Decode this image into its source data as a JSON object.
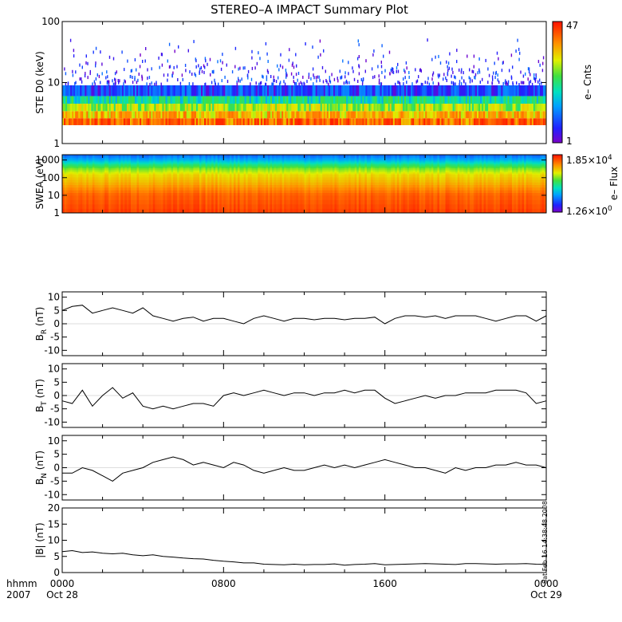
{
  "title": "STEREO–A IMPACT Summary Plot",
  "colorbars": {
    "ste": {
      "max_label": "47",
      "min_label": "1",
      "label": "e– Cnts"
    },
    "swea": {
      "max_mant": "1.85×10",
      "max_exp": "4",
      "min_mant": "1.26×10",
      "min_exp": "0",
      "label": "e– Flux"
    }
  },
  "time_axis": {
    "corner_top": "hhmm",
    "corner_bottom": "2007",
    "ticks": [
      {
        "time": "0000",
        "date": "Oct 28",
        "hour": 0
      },
      {
        "time": "0800",
        "date": "",
        "hour": 8
      },
      {
        "time": "1600",
        "date": "",
        "hour": 16
      },
      {
        "time": "0000",
        "date": "Oct 29",
        "hour": 24
      }
    ]
  },
  "stamp": "Sat Feb 16 14:38:48 2008",
  "chart_data": [
    {
      "type": "heatmap",
      "id": "ste",
      "ylabel": "STE D0 (keV)",
      "yscale": "log",
      "ylim": [
        1,
        100
      ],
      "ytick_labels": [
        "1",
        "10",
        "100"
      ],
      "xlim_hours": [
        0,
        24
      ],
      "colorbar_range": [
        1,
        47
      ],
      "colorbar_label": "e– Cnts",
      "bands": [
        {
          "elow": 2.0,
          "ehigh": 2.6,
          "mean_cnts": 30
        },
        {
          "elow": 2.6,
          "ehigh": 3.4,
          "mean_cnts": 20
        },
        {
          "elow": 3.4,
          "ehigh": 4.5,
          "mean_cnts": 12
        },
        {
          "elow": 4.5,
          "ehigh": 6.0,
          "mean_cnts": 6
        },
        {
          "elow": 6.0,
          "ehigh": 9.0,
          "mean_cnts": 2
        }
      ]
    },
    {
      "type": "heatmap",
      "id": "swea",
      "ylabel": "SWEA (eV)",
      "yscale": "log",
      "ylim": [
        1,
        2000
      ],
      "ytick_labels": [
        "1",
        "10",
        "100",
        "1000"
      ],
      "xlim_hours": [
        0,
        24
      ],
      "colorbar_range": [
        1.26,
        18500
      ],
      "colorbar_label": "e– Flux",
      "energy_profile": [
        {
          "energy": 1,
          "flux_level": 0.93
        },
        {
          "energy": 10,
          "flux_level": 0.88
        },
        {
          "energy": 40,
          "flux_level": 0.78
        },
        {
          "energy": 150,
          "flux_level": 0.7
        },
        {
          "energy": 300,
          "flux_level": 0.6
        },
        {
          "energy": 600,
          "flux_level": 0.45
        },
        {
          "energy": 1000,
          "flux_level": 0.32
        },
        {
          "energy": 2000,
          "flux_level": 0.2
        }
      ]
    },
    {
      "type": "line",
      "id": "br",
      "ylabel": "B_R (nT)",
      "ylim": [
        -12,
        12
      ],
      "ytick_labels": [
        "-10",
        "-5",
        "0",
        "5",
        "10"
      ],
      "xlim_hours": [
        0,
        24
      ],
      "x": [
        0,
        0.5,
        1,
        1.5,
        2,
        2.5,
        3,
        3.5,
        4,
        4.5,
        5,
        5.5,
        6,
        6.5,
        7,
        7.5,
        8,
        8.5,
        9,
        9.5,
        10,
        10.5,
        11,
        11.5,
        12,
        12.5,
        13,
        13.5,
        14,
        14.5,
        15,
        15.5,
        16,
        16.5,
        17,
        17.5,
        18,
        18.5,
        19,
        19.5,
        20,
        20.5,
        21,
        21.5,
        22,
        22.5,
        23,
        23.5,
        24
      ],
      "y": [
        5,
        6.5,
        7,
        4,
        5,
        6,
        5,
        4,
        6,
        3,
        2,
        1,
        2,
        2.5,
        1,
        2,
        2,
        1,
        0,
        2,
        3,
        2,
        1,
        2,
        2,
        1.5,
        2,
        2,
        1.5,
        2,
        2,
        2.5,
        0,
        2,
        3,
        3,
        2.5,
        3,
        2,
        3,
        3,
        3,
        2,
        1,
        2,
        3,
        3,
        1,
        3
      ]
    },
    {
      "type": "line",
      "id": "bt",
      "ylabel": "B_T (nT)",
      "ylim": [
        -12,
        12
      ],
      "ytick_labels": [
        "-10",
        "-5",
        "0",
        "5",
        "10"
      ],
      "xlim_hours": [
        0,
        24
      ],
      "x": [
        0,
        0.5,
        1,
        1.5,
        2,
        2.5,
        3,
        3.5,
        4,
        4.5,
        5,
        5.5,
        6,
        6.5,
        7,
        7.5,
        8,
        8.5,
        9,
        9.5,
        10,
        10.5,
        11,
        11.5,
        12,
        12.5,
        13,
        13.5,
        14,
        14.5,
        15,
        15.5,
        16,
        16.5,
        17,
        17.5,
        18,
        18.5,
        19,
        19.5,
        20,
        20.5,
        21,
        21.5,
        22,
        22.5,
        23,
        23.5,
        24
      ],
      "y": [
        -2,
        -3,
        2,
        -4,
        0,
        3,
        -1,
        1,
        -4,
        -5,
        -4,
        -5,
        -4,
        -3,
        -3,
        -4,
        0,
        1,
        0,
        1,
        2,
        1,
        0,
        1,
        1,
        0,
        1,
        1,
        2,
        1,
        2,
        2,
        -1,
        -3,
        -2,
        -1,
        0,
        -1,
        0,
        0,
        1,
        1,
        1,
        2,
        2,
        2,
        1,
        -3,
        -2
      ]
    },
    {
      "type": "line",
      "id": "bn",
      "ylabel": "B_N (nT)",
      "ylim": [
        -12,
        12
      ],
      "ytick_labels": [
        "-10",
        "-5",
        "0",
        "5",
        "10"
      ],
      "xlim_hours": [
        0,
        24
      ],
      "x": [
        0,
        0.5,
        1,
        1.5,
        2,
        2.5,
        3,
        3.5,
        4,
        4.5,
        5,
        5.5,
        6,
        6.5,
        7,
        7.5,
        8,
        8.5,
        9,
        9.5,
        10,
        10.5,
        11,
        11.5,
        12,
        12.5,
        13,
        13.5,
        14,
        14.5,
        15,
        15.5,
        16,
        16.5,
        17,
        17.5,
        18,
        18.5,
        19,
        19.5,
        20,
        20.5,
        21,
        21.5,
        22,
        22.5,
        23,
        23.5,
        24
      ],
      "y": [
        -2,
        -2,
        0,
        -1,
        -3,
        -5,
        -2,
        -1,
        0,
        2,
        3,
        4,
        3,
        1,
        2,
        1,
        0,
        2,
        1,
        -1,
        -2,
        -1,
        0,
        -1,
        -1,
        0,
        1,
        0,
        1,
        0,
        1,
        2,
        3,
        2,
        1,
        0,
        0,
        -1,
        -2,
        0,
        -1,
        0,
        0,
        1,
        1,
        2,
        1,
        1,
        0
      ]
    },
    {
      "type": "line",
      "id": "bt_mag",
      "ylabel": "|B| (nT)",
      "ylim": [
        0,
        20
      ],
      "ytick_labels": [
        "0",
        "5",
        "10",
        "15",
        "20"
      ],
      "xlim_hours": [
        0,
        24
      ],
      "x": [
        0,
        0.5,
        1,
        1.5,
        2,
        2.5,
        3,
        3.5,
        4,
        4.5,
        5,
        5.5,
        6,
        6.5,
        7,
        7.5,
        8,
        8.5,
        9,
        9.5,
        10,
        10.5,
        11,
        11.5,
        12,
        12.5,
        13,
        13.5,
        14,
        14.5,
        15,
        15.5,
        16,
        16.5,
        17,
        17.5,
        18,
        18.5,
        19,
        19.5,
        20,
        20.5,
        21,
        21.5,
        22,
        22.5,
        23,
        23.5,
        24
      ],
      "y": [
        6.5,
        6.8,
        6.2,
        6.4,
        6,
        5.8,
        6,
        5.5,
        5.2,
        5.5,
        5,
        4.8,
        4.5,
        4.3,
        4.2,
        3.8,
        3.5,
        3.3,
        3,
        3,
        2.6,
        2.5,
        2.4,
        2.6,
        2.4,
        2.5,
        2.5,
        2.7,
        2.3,
        2.5,
        2.6,
        2.8,
        2.4,
        2.5,
        2.6,
        2.7,
        2.8,
        2.7,
        2.6,
        2.5,
        2.8,
        2.8,
        2.7,
        2.6,
        2.7,
        2.7,
        2.8,
        2.6,
        2.5
      ]
    }
  ]
}
